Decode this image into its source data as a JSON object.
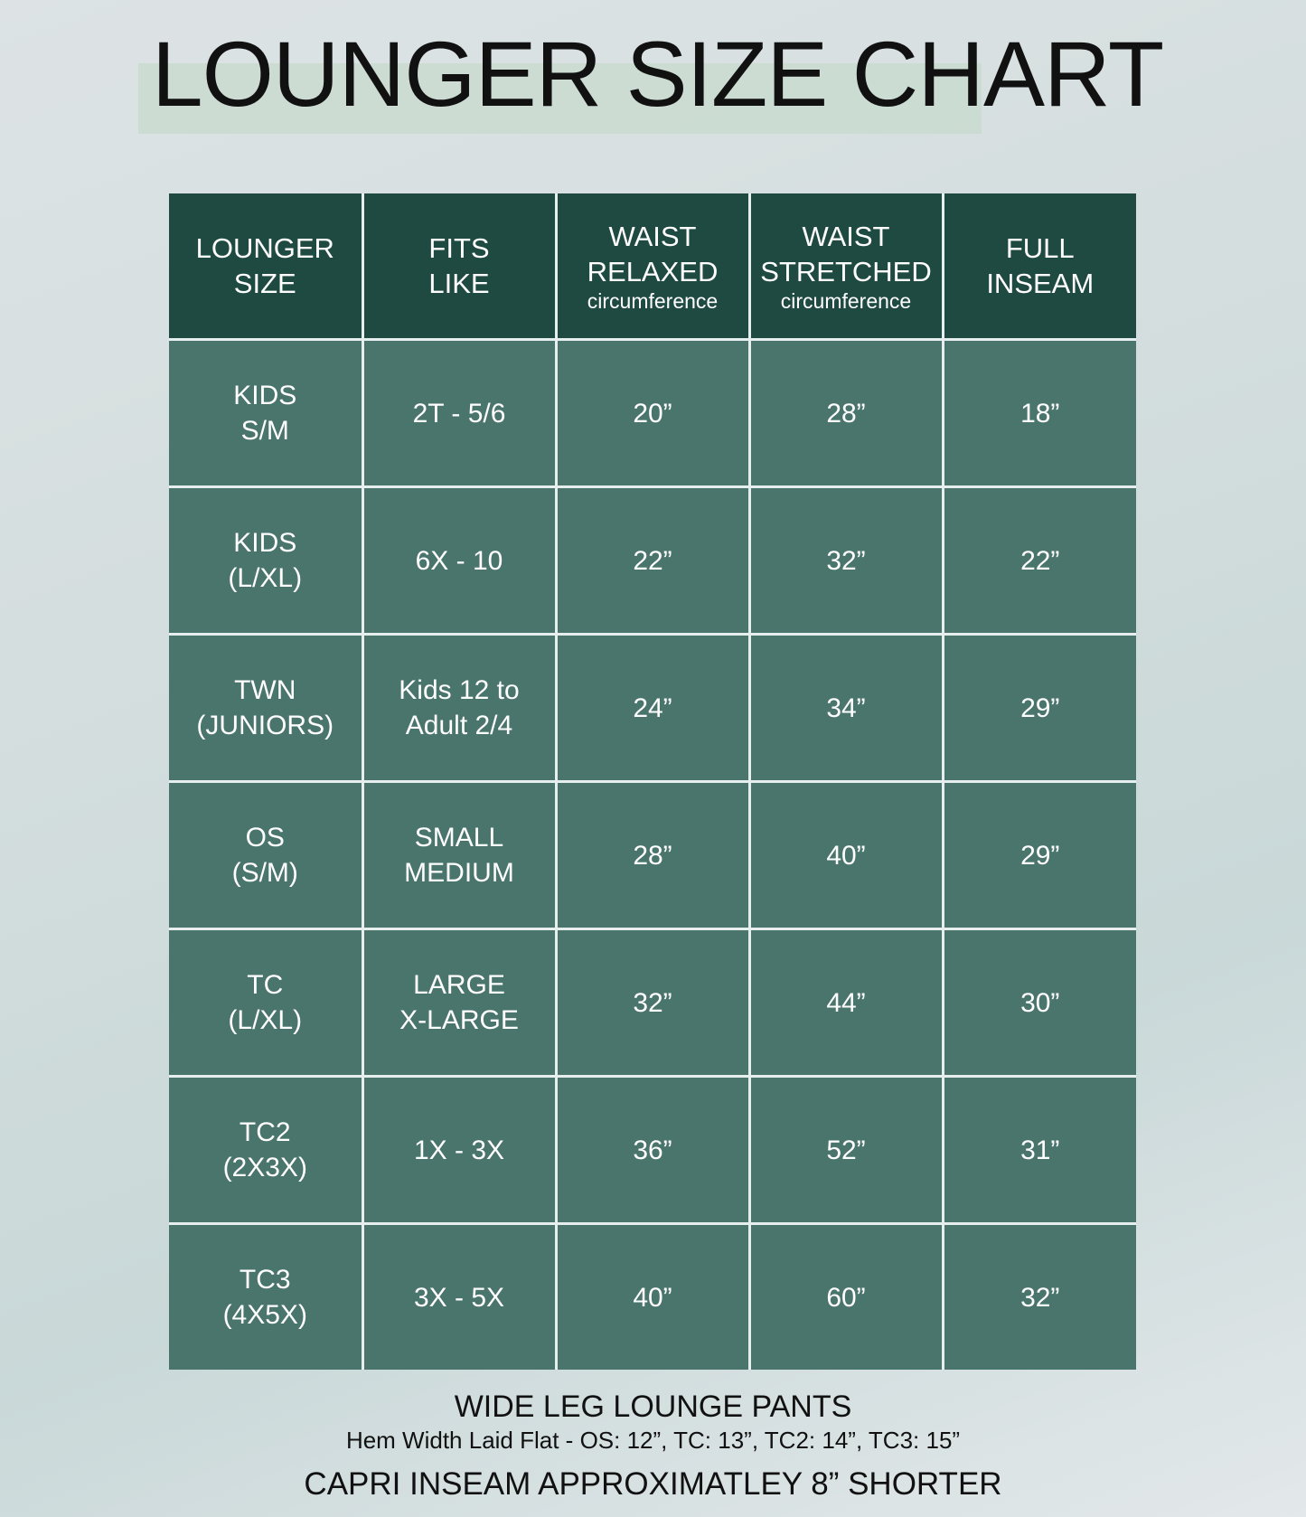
{
  "title": "LOUNGER SIZE CHART",
  "colors": {
    "header_bg": "#1e4a42",
    "cell_bg": "#4a756d",
    "highlight": "#c9dad0"
  },
  "headers": [
    {
      "line1": "LOUNGER",
      "line2": "SIZE",
      "sub": ""
    },
    {
      "line1": "FITS",
      "line2": "LIKE",
      "sub": ""
    },
    {
      "line1": "WAIST",
      "line2": "RELAXED",
      "sub": "circumference"
    },
    {
      "line1": "WAIST",
      "line2": "STRETCHED",
      "sub": "circumference"
    },
    {
      "line1": "FULL",
      "line2": "INSEAM",
      "sub": ""
    }
  ],
  "rows": [
    {
      "size": [
        "KIDS",
        "S/M"
      ],
      "fits": [
        "2T - 5/6",
        ""
      ],
      "relaxed": "20”",
      "stretched": "28”",
      "inseam": "18”"
    },
    {
      "size": [
        "KIDS",
        "(L/XL)"
      ],
      "fits": [
        "6X - 10",
        ""
      ],
      "relaxed": "22”",
      "stretched": "32”",
      "inseam": "22”"
    },
    {
      "size": [
        "TWN",
        "(JUNIORS)"
      ],
      "fits": [
        "Kids 12 to",
        "Adult 2/4"
      ],
      "relaxed": "24”",
      "stretched": "34”",
      "inseam": "29”"
    },
    {
      "size": [
        "OS",
        "(S/M)"
      ],
      "fits": [
        "SMALL",
        "MEDIUM"
      ],
      "relaxed": "28”",
      "stretched": "40”",
      "inseam": "29”"
    },
    {
      "size": [
        "TC",
        "(L/XL)"
      ],
      "fits": [
        "LARGE",
        "X-LARGE"
      ],
      "relaxed": "32”",
      "stretched": "44”",
      "inseam": "30”"
    },
    {
      "size": [
        "TC2",
        "(2X3X)"
      ],
      "fits": [
        "1X - 3X",
        ""
      ],
      "relaxed": "36”",
      "stretched": "52”",
      "inseam": "31”"
    },
    {
      "size": [
        "TC3",
        "(4X5X)"
      ],
      "fits": [
        "3X - 5X",
        ""
      ],
      "relaxed": "40”",
      "stretched": "60”",
      "inseam": "32”"
    }
  ],
  "footer": {
    "product": "WIDE LEG LOUNGE PANTS",
    "hem": "Hem Width Laid Flat - OS: 12”, TC: 13”, TC2: 14”, TC3: 15”",
    "capri": "CAPRI INSEAM APPROXIMATLEY 8” SHORTER"
  }
}
